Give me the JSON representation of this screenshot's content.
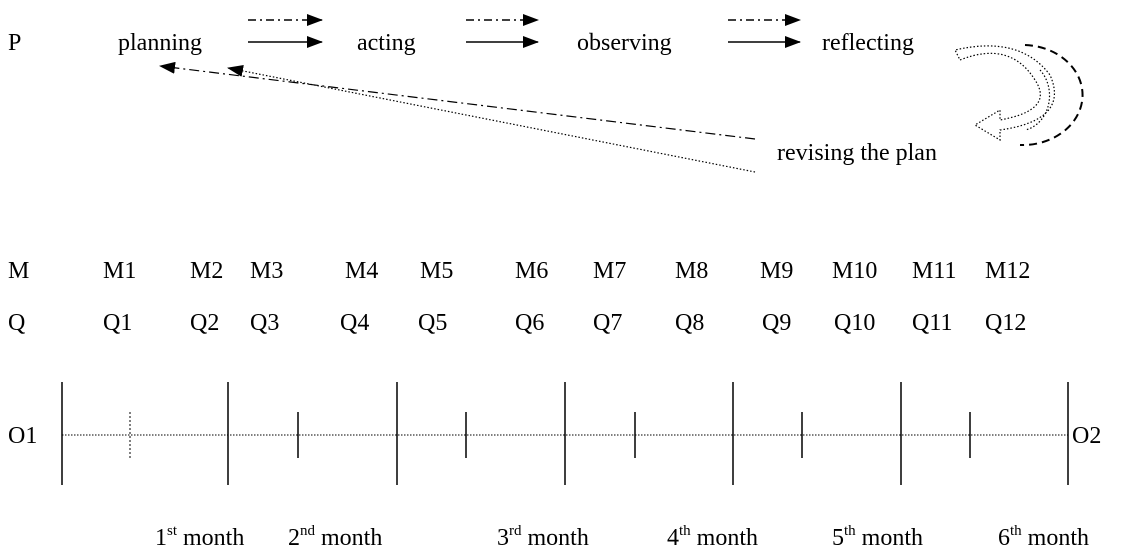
{
  "cycle": {
    "label": "P",
    "steps": [
      "planning",
      "acting",
      "observing",
      "reflecting"
    ],
    "revise": "revising the plan"
  },
  "meetings": {
    "label": "M",
    "items": [
      "M1",
      "M2",
      "M3",
      "M4",
      "M5",
      "M6",
      "M7",
      "M8",
      "M9",
      "M10",
      "M11",
      "M12"
    ]
  },
  "questionnaires": {
    "label": "Q",
    "items": [
      "Q1",
      "Q2",
      "Q3",
      "Q4",
      "Q5",
      "Q6",
      "Q7",
      "Q8",
      "Q9",
      "Q10",
      "Q11",
      "Q12"
    ]
  },
  "timeline": {
    "start": "O1",
    "end": "O2",
    "months": [
      {
        "number": "1",
        "suffix": "st",
        "word": "month"
      },
      {
        "number": "2",
        "suffix": "nd",
        "word": "month"
      },
      {
        "number": "3",
        "suffix": "rd",
        "word": "month"
      },
      {
        "number": "4",
        "suffix": "th",
        "word": "month"
      },
      {
        "number": "5",
        "suffix": "th",
        "word": "month"
      },
      {
        "number": "6",
        "suffix": "th",
        "word": "month"
      }
    ]
  }
}
